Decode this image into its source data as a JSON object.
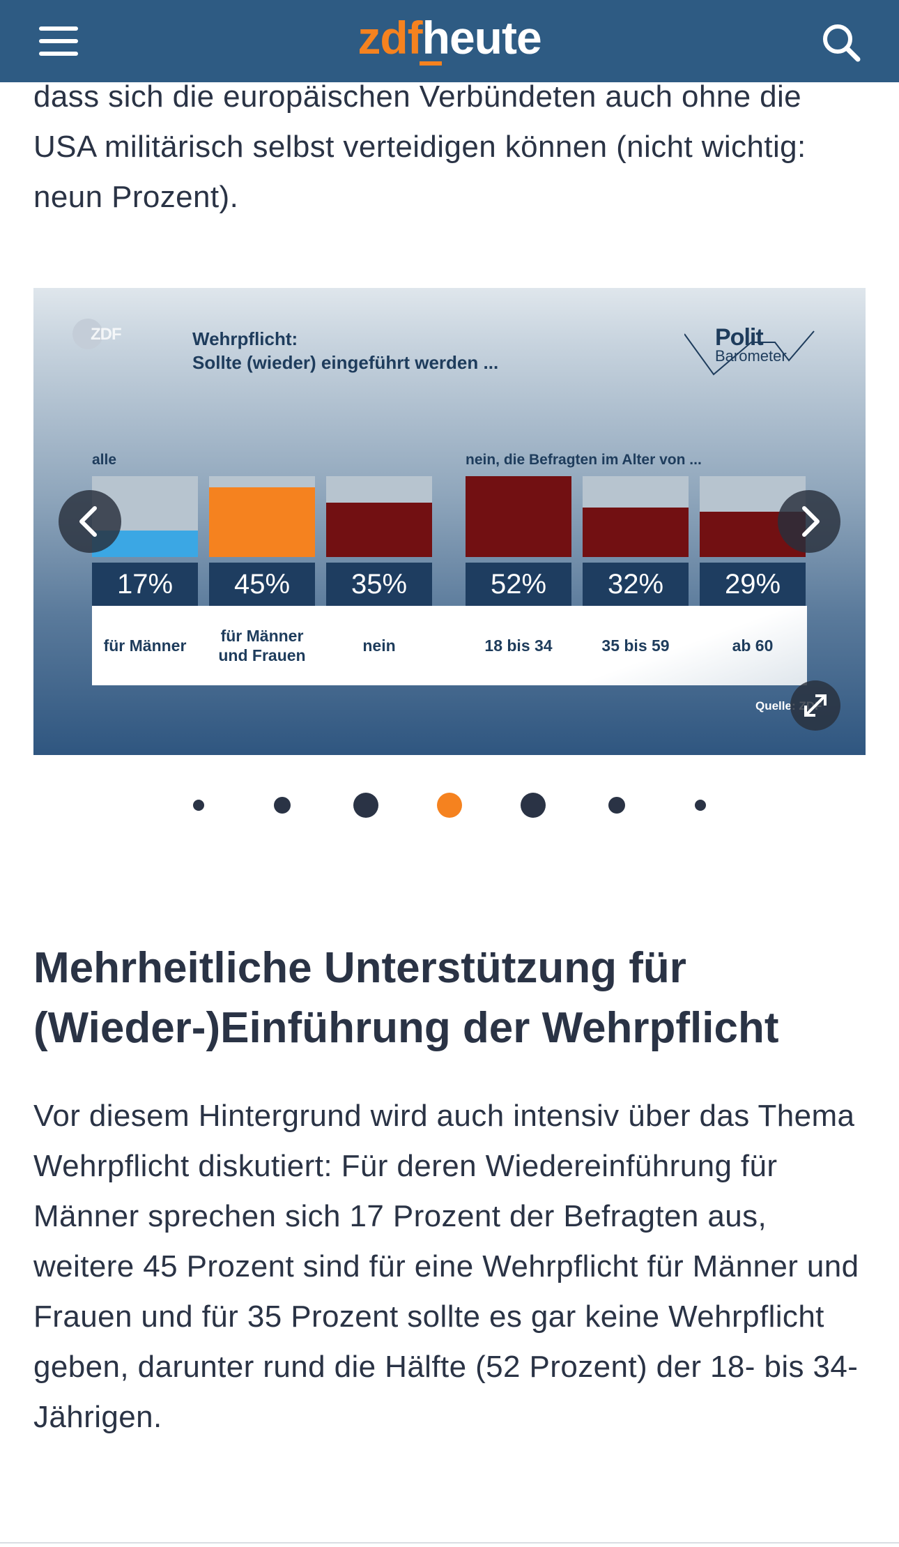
{
  "header": {
    "logo_zdf": "zdf",
    "logo_heute": "heute",
    "menu_icon": "hamburger-menu-icon",
    "search_icon": "search-icon",
    "background": "#2e5b83",
    "accent": "#f5821f"
  },
  "article": {
    "intro_text": "dass sich die europäischen Verbündeten auch ohne die USA militärisch selbst verteidigen können (nicht wichtig: neun Prozent).",
    "headline": "Mehrheitliche Unterstützung für (Wieder-)Einführung der Wehrpflicht",
    "paragraph": "Vor diesem Hintergrund wird auch intensiv über das Thema Wehrpflicht diskutiert: Für deren Wiedereinführung für Männer sprechen sich 17 Prozent der Befragten aus, weitere 45 Prozent sind für eine Wehrpflicht für Männer und Frauen und für 35 Prozent sollte es gar keine Wehrpflicht geben, darunter rund die Hälfte (52 Prozent) der 18- bis 34-Jährigen."
  },
  "gallery": {
    "zdf_mark": "ZDF",
    "title_line1": "Wehrpflicht:",
    "title_line2": "Sollte (wieder) eingeführt werden ...",
    "polit_logo_word": "Polit",
    "barometer_word": "Barometer",
    "group_all": "alle",
    "group_no_age": "nein, die Befragten im Alter von ...",
    "source": "Quelle: ZDF",
    "prev_icon": "chevron-left-icon",
    "next_icon": "chevron-right-icon",
    "expand_icon": "expand-icon",
    "dots_count": 7,
    "active_dot_index": 3
  },
  "chart_data": {
    "type": "bar",
    "title": "Wehrpflicht: Sollte (wieder) eingeführt werden ...",
    "categories": [
      "für Männer",
      "für Männer und Frauen",
      "nein",
      "18 bis 34",
      "35 bis 59",
      "ab 60"
    ],
    "category_lines": [
      [
        "für Männer"
      ],
      [
        "für Männer",
        "und Frauen"
      ],
      [
        "nein"
      ],
      [
        "18 bis 34"
      ],
      [
        "35 bis 59"
      ],
      [
        "ab 60"
      ]
    ],
    "values": [
      17,
      45,
      35,
      52,
      32,
      29
    ],
    "value_labels": [
      "17%",
      "45%",
      "35%",
      "52%",
      "32%",
      "29%"
    ],
    "groups": [
      "alle",
      "alle",
      "alle",
      "nein, die Befragten im Alter von ...",
      "nein, die Befragten im Alter von ...",
      "nein, die Befragten im Alter von ..."
    ],
    "colors": [
      "#3ba7e4",
      "#f5821f",
      "#721012",
      "#721012",
      "#721012",
      "#721012"
    ],
    "ylim": [
      0,
      52
    ],
    "xlabel": "",
    "ylabel": ""
  }
}
